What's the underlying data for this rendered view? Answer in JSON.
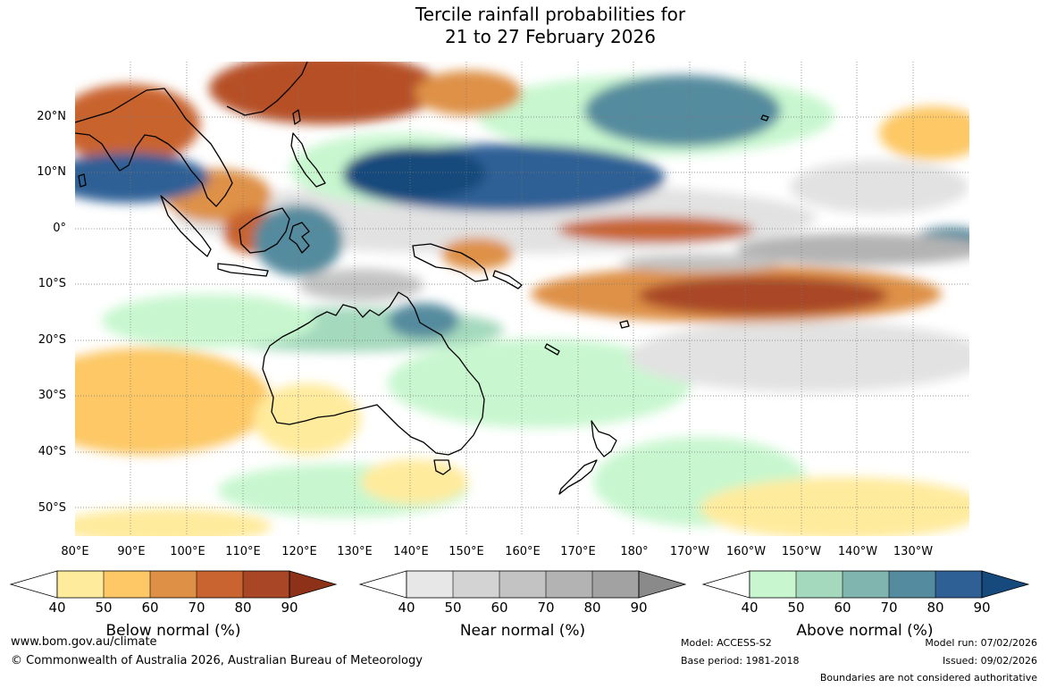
{
  "title": {
    "line1": "Tercile rainfall probabilities for",
    "line2": "21 to 27 February 2026"
  },
  "map": {
    "lat_labels": [
      "20°N",
      "10°N",
      "0°",
      "10°S",
      "20°S",
      "30°S",
      "40°S",
      "50°S"
    ],
    "lon_labels": [
      "80°E",
      "90°E",
      "100°E",
      "110°E",
      "120°E",
      "130°E",
      "140°E",
      "150°E",
      "160°E",
      "170°E",
      "180°",
      "170°W",
      "160°W",
      "150°W",
      "140°W",
      "130°W"
    ],
    "regions": {
      "southeast-asia": "#c8581f",
      "maritime-continent": "#3b6f9d",
      "equatorial-pacific": "#c8581f",
      "australia": "#ffffff"
    }
  },
  "colorbars": {
    "below": {
      "title": "Below normal (%)",
      "ticks": [
        "40",
        "50",
        "60",
        "70",
        "80",
        "90"
      ],
      "colors": [
        "#ffeb9c",
        "#fdc865",
        "#de9146",
        "#c9632f",
        "#a94626",
        "#8e3119"
      ]
    },
    "near": {
      "title": "Near normal (%)",
      "ticks": [
        "40",
        "50",
        "60",
        "70",
        "80",
        "90"
      ],
      "colors": [
        "#e7e7e7",
        "#d3d3d3",
        "#c3c3c3",
        "#b3b3b3",
        "#a2a2a2",
        "#8a8a8a"
      ]
    },
    "above": {
      "title": "Above normal (%)",
      "ticks": [
        "40",
        "50",
        "60",
        "70",
        "80",
        "90"
      ],
      "colors": [
        "#c8f7cf",
        "#a4d9bd",
        "#80b4ae",
        "#548b9e",
        "#2e6096",
        "#164a7c"
      ]
    }
  },
  "footer": {
    "url": "www.bom.gov.au/climate",
    "copyright": "© Commonwealth of Australia 2026, Australian Bureau of Meteorology",
    "model": "Model: ACCESS-S2",
    "base_period": "Base period: 1981-2018",
    "model_run": "Model run: 07/02/2026",
    "issued": "Issued: 09/02/2026",
    "disclaimer": "Boundaries are not considered authoritative"
  }
}
